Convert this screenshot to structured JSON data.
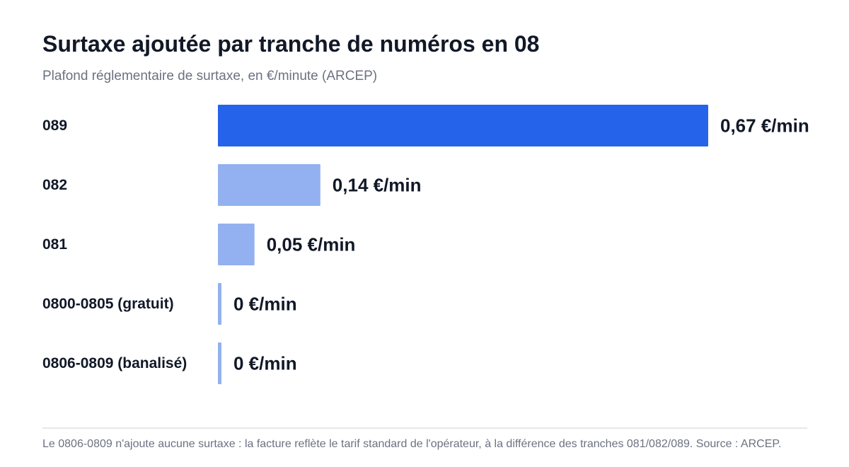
{
  "header": {
    "title": "Surtaxe ajoutée par tranche de numéros en 08",
    "subtitle": "Plafond réglementaire de surtaxe, en €/minute (ARCEP)"
  },
  "chart_data": {
    "type": "bar",
    "orientation": "horizontal",
    "categories": [
      "089",
      "082",
      "081",
      "0800-0805 (gratuit)",
      "0806-0809 (banalisé)"
    ],
    "values": [
      0.67,
      0.14,
      0.05,
      0,
      0
    ],
    "value_labels": [
      "0,67 €/min",
      "0,14 €/min",
      "0,05 €/min",
      "0 €/min",
      "0 €/min"
    ],
    "xlim": [
      0,
      0.67
    ],
    "grid": false,
    "legend": "none",
    "colors": {
      "highlight": "#2563eb",
      "default": "#93b1f0",
      "category_label": "#111827",
      "value_label": "#111827"
    }
  },
  "footer": {
    "note": "Le 0806-0809 n'ajoute aucune surtaxe : la facture reflète le tarif standard de l'opérateur, à la différence des tranches 081/082/089. Source : ARCEP."
  }
}
